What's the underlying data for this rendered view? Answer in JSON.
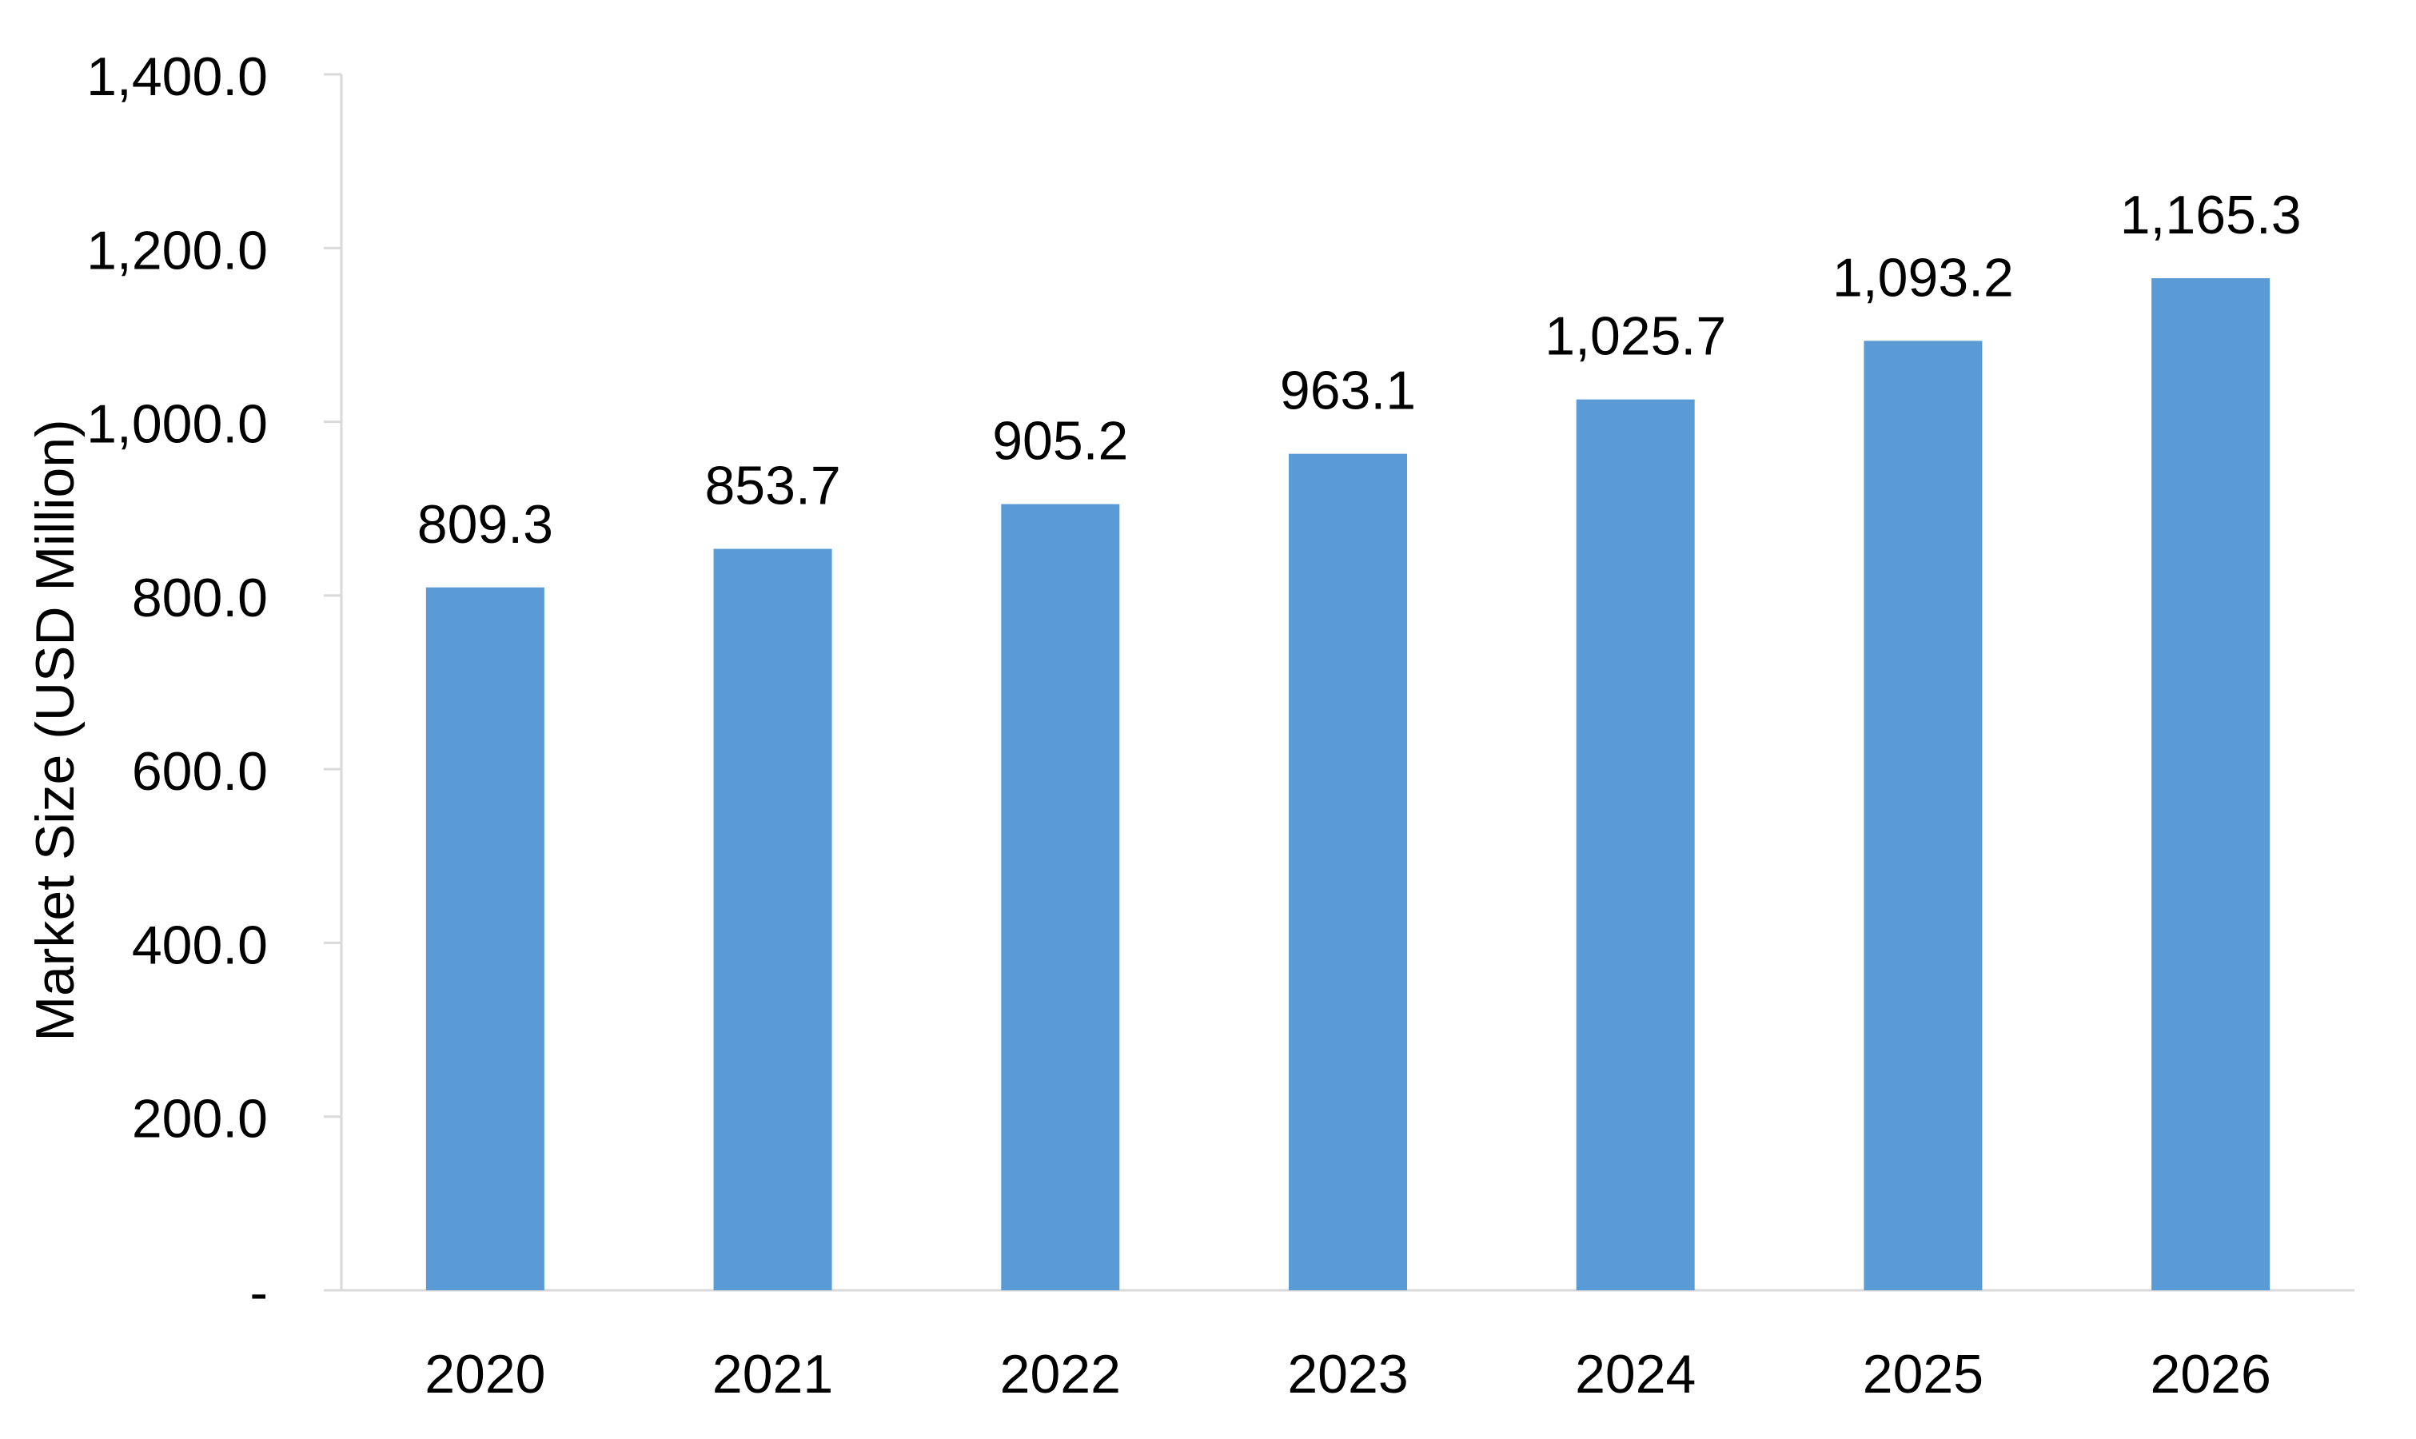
{
  "chart_data": {
    "type": "bar",
    "title": "",
    "xlabel": "",
    "ylabel": "Market Size (USD Million)",
    "categories": [
      "2020",
      "2021",
      "2022",
      "2023",
      "2024",
      "2025",
      "2026"
    ],
    "values": [
      809.3,
      853.7,
      905.2,
      963.1,
      1025.7,
      1093.2,
      1165.3
    ],
    "value_labels": [
      "809.3",
      "853.7",
      "905.2",
      "963.1",
      "1,025.7",
      "1,093.2",
      "1,165.3"
    ],
    "ylim": [
      0,
      1400
    ],
    "y_ticks": [
      0,
      200,
      400,
      600,
      800,
      1000,
      1200,
      1400
    ],
    "y_tick_labels": [
      "-",
      "200.0",
      "400.0",
      "600.0",
      "800.0",
      "1,000.0",
      "1,200.0",
      "1,400.0"
    ],
    "grid": false,
    "legend": "none",
    "bar_color": "#5B9BD5",
    "axis_color": "#D9D9D9"
  }
}
